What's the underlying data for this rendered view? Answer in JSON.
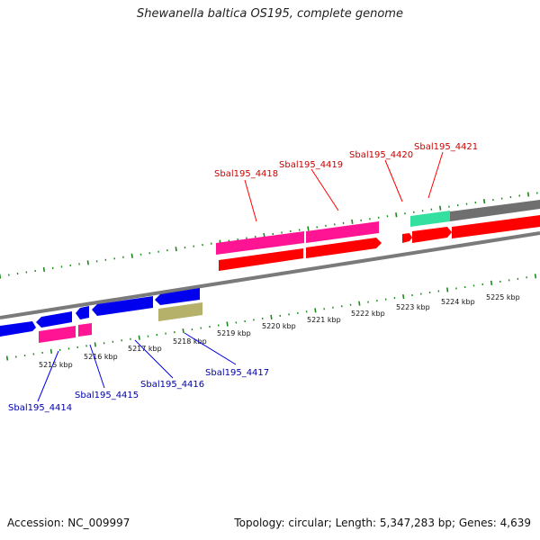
{
  "title": "Shewanella baltica OS195, complete genome",
  "accession": "Accession: NC_009997",
  "summary": "Topology: circular; Length: 5,347,283 bp; Genes: 4,639",
  "scale_labels": [
    "5215 kbp",
    "5216 kbp",
    "5217 kbp",
    "5218 kbp",
    "5219 kbp",
    "5220 kbp",
    "5221 kbp",
    "5222 kbp",
    "5223 kbp",
    "5224 kbp",
    "5225 kbp"
  ],
  "forward_labels": [
    "Sbal195_4418",
    "Sbal195_4419",
    "Sbal195_4420",
    "Sbal195_4421"
  ],
  "reverse_labels": [
    "Sbal195_4414",
    "Sbal195_4415",
    "Sbal195_4416",
    "Sbal195_4417"
  ],
  "colors": {
    "cds": "#ff0000",
    "gene": "#ff1493",
    "reverse_cds": "#0000ee",
    "rna": "#b5b06a",
    "teal": "#33e0a0",
    "backbone": "#808080",
    "tick": "#1a8a1a",
    "forward_label": "#cc0000",
    "reverse_label": "#0000aa"
  }
}
